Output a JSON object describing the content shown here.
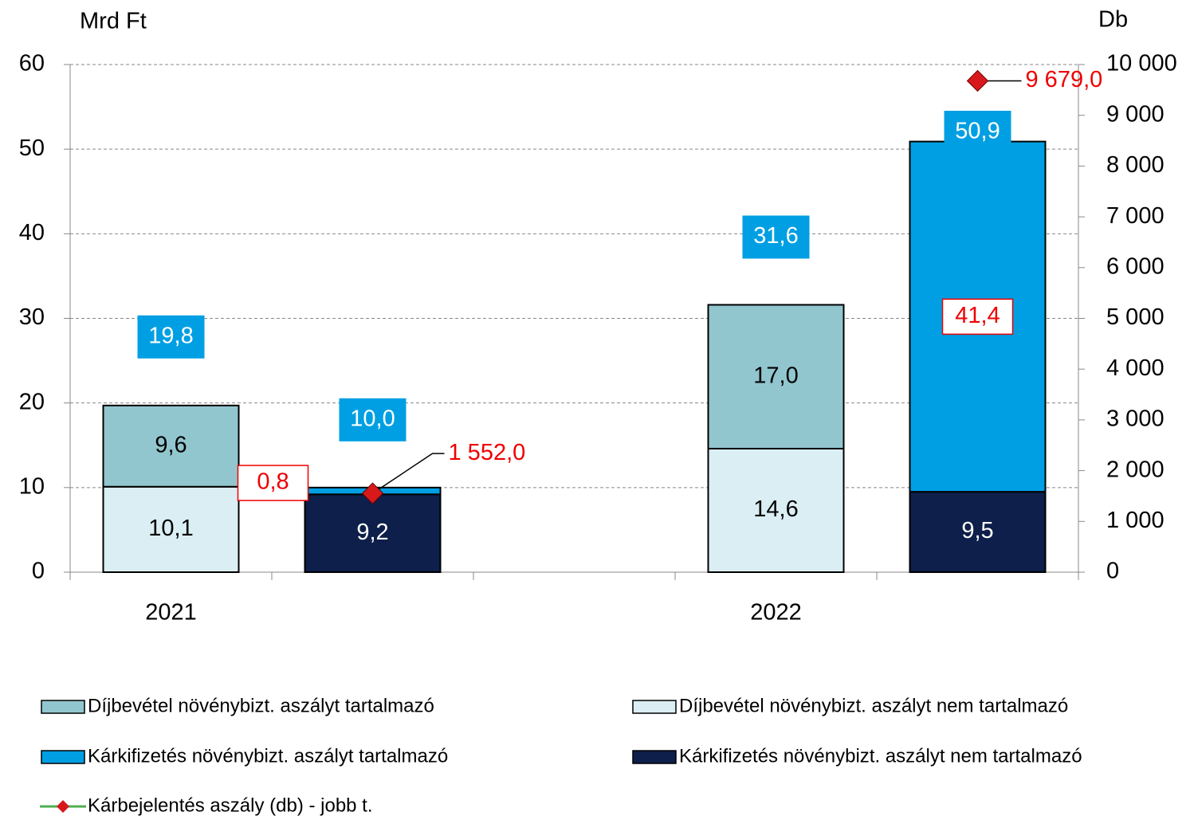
{
  "chart_data": {
    "type": "bar",
    "y_label": "Mrd Ft",
    "y2_label": "Db",
    "categories": [
      "2021",
      null,
      null,
      "2022",
      null
    ],
    "series": [
      {
        "name": "Díjbevétel növénybizt. aszályt tartalmazó",
        "color": "#92c6cf",
        "values": [
          9.6,
          null,
          null,
          17.0,
          null
        ],
        "value_labels": [
          "9,6",
          null,
          null,
          "17,0",
          null
        ]
      },
      {
        "name": "Díjbevétel  növénybizt. aszályt nem tartalmazó",
        "color": "#daeef3",
        "values": [
          10.1,
          null,
          null,
          14.6,
          null
        ],
        "value_labels": [
          "10,1",
          null,
          null,
          "14,6",
          null
        ]
      },
      {
        "name": "Kárkifizetés növénybizt. aszályt tartalmazó",
        "color": "#009fe3",
        "values": [
          null,
          0.8,
          null,
          null,
          41.4
        ],
        "value_labels": [
          null,
          "0,8",
          null,
          null,
          "41,4"
        ]
      },
      {
        "name": "Kárkifizetés növénybizt. aszályt nem tartalmazó",
        "color": "#0d1f4a",
        "values": [
          null,
          9.2,
          null,
          null,
          9.5
        ],
        "value_labels": [
          null,
          "9,2",
          null,
          null,
          "9,5"
        ]
      },
      {
        "name": "Kárbejelentés aszály (db) - jobb t.",
        "type": "line",
        "axis": "y2",
        "color": "#4caf50",
        "marker_color": "#d7191c",
        "values": [
          null,
          1552.0,
          null,
          null,
          9679.0
        ],
        "value_labels": [
          null,
          "1 552,0",
          null,
          null,
          "9 679,0"
        ]
      }
    ],
    "totals": {
      "values": [
        19.8,
        10.0,
        null,
        31.6,
        50.9
      ],
      "value_labels": [
        "19,8",
        "10,0",
        null,
        "31,6",
        "50,9"
      ],
      "color": "#009fe3"
    },
    "ylim": [
      0,
      60
    ],
    "yticks": [
      0,
      10,
      20,
      30,
      40,
      50,
      60
    ],
    "y2lim": [
      0,
      10000
    ],
    "y2ticks": [
      0,
      {
        "value": 1000,
        "label": "1 000"
      },
      {
        "value": 2000,
        "label": "2 000"
      },
      {
        "value": 3000,
        "label": "3 000"
      },
      {
        "value": 4000,
        "label": "4 000"
      },
      {
        "value": 5000,
        "label": "5 000"
      },
      {
        "value": 6000,
        "label": "6 000"
      },
      {
        "value": 7000,
        "label": "7 000"
      },
      {
        "value": 8000,
        "label": "8 000"
      },
      {
        "value": 9000,
        "label": "9 000"
      },
      {
        "value": 10000,
        "label": "10 000"
      }
    ],
    "grid": true
  }
}
